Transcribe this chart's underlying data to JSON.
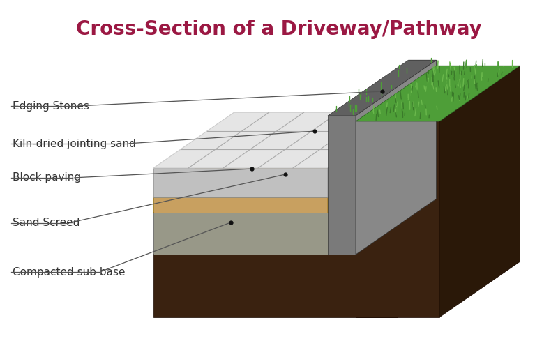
{
  "title": "Cross-Section of a Driveway/Pathway",
  "title_color": "#9b1843",
  "title_fontsize": 20,
  "background_color": "#ffffff",
  "labels": {
    "edging_stones": "Edging Stones",
    "kiln_sand": "Kiln-dried jointing sand",
    "block_paving": "Block paving",
    "sand_screed": "Sand Screed",
    "compacted_sub": "Compacted sub base"
  },
  "label_fontsize": 11,
  "colors": {
    "grass_green_dark": "#3a7a2a",
    "grass_green": "#4e9e38",
    "grass_green_light": "#6ab84c",
    "edging_stone_top": "#606060",
    "edging_stone_front": "#7a7a7a",
    "edging_stone_side": "#888888",
    "block_paving_top": "#e5e5e5",
    "block_paving_front": "#c0c0c0",
    "block_paving_side": "#b8b8b8",
    "block_line": "#aaaaaa",
    "sand_screed_top": "#d4b87a",
    "sand_screed_front": "#c8a060",
    "sand_screed_side": "#b89050",
    "sub_base_top": "#a8a898",
    "sub_base_front": "#989888",
    "sub_base_side": "#888878",
    "soil_front": "#3a2210",
    "soil_top": "#2e1a0a",
    "soil_side": "#2a1808",
    "annotation_line": "#555555",
    "soil_right_front": "#3a2210",
    "grass_soil_front": "#3a2210",
    "grass_soil_side": "#2a1808"
  }
}
